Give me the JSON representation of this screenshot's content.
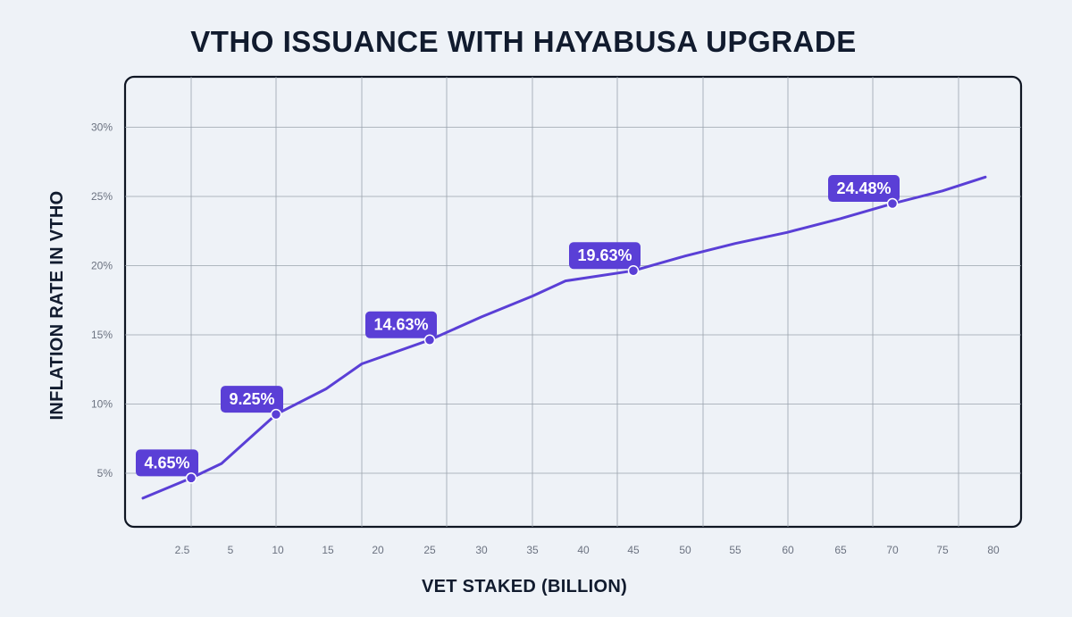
{
  "chart_data": {
    "type": "line",
    "title": "VTHO ISSUANCE WITH HAYABUSA UPGRADE",
    "xlabel": "VET STAKED (BILLION)",
    "ylabel": "INFLATION RATE IN VTHO",
    "x_ticks": [
      "2.5",
      "5",
      "10",
      "15",
      "20",
      "25",
      "30",
      "35",
      "40",
      "45",
      "50",
      "55",
      "60",
      "65",
      "70",
      "75",
      "80"
    ],
    "y_ticks": [
      "5%",
      "10%",
      "15%",
      "20%",
      "25%",
      "30%"
    ],
    "ylim": [
      0,
      33
    ],
    "grid": true,
    "series": [
      {
        "x": [
          0.5,
          2.5,
          5,
          10,
          15,
          20,
          25,
          30,
          35,
          40,
          45,
          50,
          55,
          60,
          65,
          70,
          75,
          80
        ],
        "values": [
          3.2,
          4.65,
          5.7,
          9.25,
          11.1,
          12.9,
          14.63,
          16.3,
          17.8,
          18.9,
          19.63,
          20.7,
          21.6,
          22.4,
          23.4,
          24.48,
          25.4,
          26.4
        ]
      }
    ],
    "labels": [
      {
        "x": 2.5,
        "y": 4.65,
        "text": "4.65%"
      },
      {
        "x": 10,
        "y": 9.25,
        "text": "9.25%"
      },
      {
        "x": 25,
        "y": 14.63,
        "text": "14.63%"
      },
      {
        "x": 45,
        "y": 19.63,
        "text": "19.63%"
      },
      {
        "x": 70,
        "y": 24.48,
        "text": "24.48%"
      }
    ],
    "colors": {
      "line": "#5a3fd6",
      "label_bg": "#5a3fd6",
      "label_text": "#ffffff",
      "frame": "#0f1623"
    }
  }
}
